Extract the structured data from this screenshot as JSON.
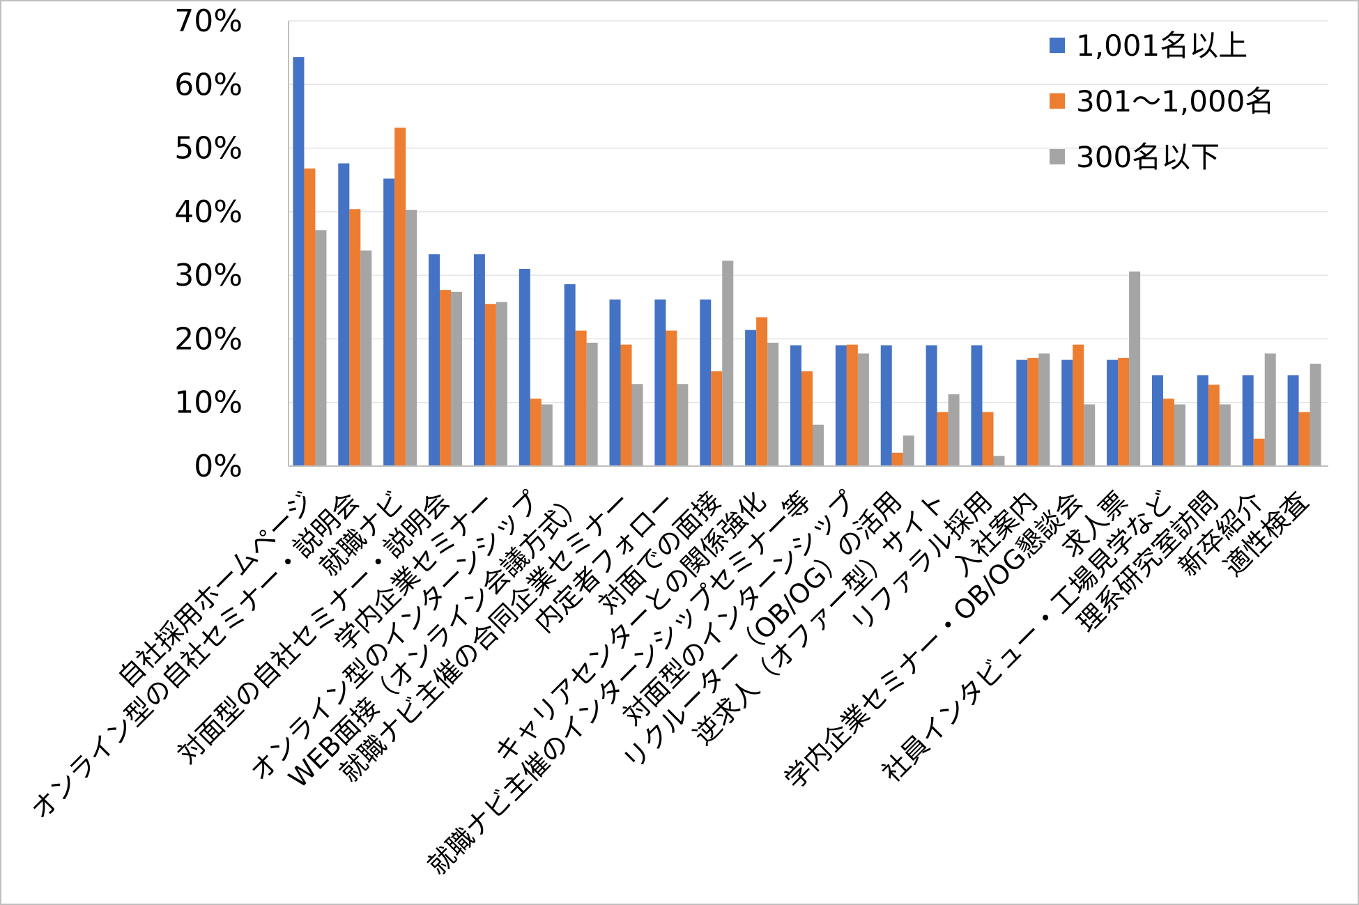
{
  "chart_data": {
    "type": "bar",
    "title": "",
    "xlabel": "",
    "ylabel": "",
    "ylim": [
      0,
      0.7
    ],
    "y_ticks": [
      "0%",
      "10%",
      "20%",
      "30%",
      "40%",
      "50%",
      "60%",
      "70%"
    ],
    "grid": true,
    "legend_position": "top-right",
    "categories": [
      "自社採用ホームページ",
      "オンライン型の自社セミナー・説明会",
      "就職ナビ",
      "対面型の自社セミナー・説明会",
      "学内企業セミナー",
      "オンライン型のインターンシップ",
      "WEB面接（オンライン会議方式）",
      "就職ナビ主催の合同企業セミナー",
      "内定者フォロー",
      "対面での面接",
      "キャリアセンターとの関係強化",
      "就職ナビ主催のインターンシップセミナー等",
      "対面型のインターンシップ",
      "リクルーター（OB/OG）の活用",
      "逆求人（オファー型）サイト",
      "リファラル採用",
      "入社案内",
      "学内企業セミナー・OB/OG懇談会",
      "求人票",
      "社員インタビュー・工場見学など",
      "理系研究室訪問",
      "新卒紹介",
      "適性検査"
    ],
    "series": [
      {
        "name": "1,001名以上",
        "color": "#4472C4",
        "values": [
          0.643,
          0.476,
          0.452,
          0.333,
          0.333,
          0.31,
          0.286,
          0.262,
          0.262,
          0.262,
          0.214,
          0.19,
          0.19,
          0.19,
          0.19,
          0.19,
          0.167,
          0.167,
          0.167,
          0.143,
          0.143,
          0.143,
          0.143
        ]
      },
      {
        "name": "301～1,000名",
        "color": "#ED7D31",
        "values": [
          0.468,
          0.404,
          0.532,
          0.277,
          0.255,
          0.106,
          0.213,
          0.191,
          0.213,
          0.149,
          0.234,
          0.149,
          0.191,
          0.021,
          0.085,
          0.085,
          0.17,
          0.191,
          0.17,
          0.106,
          0.128,
          0.043,
          0.085
        ]
      },
      {
        "name": "300名以下",
        "color": "#A5A5A5",
        "values": [
          0.371,
          0.339,
          0.403,
          0.274,
          0.258,
          0.097,
          0.194,
          0.129,
          0.129,
          0.323,
          0.194,
          0.065,
          0.177,
          0.048,
          0.113,
          0.016,
          0.177,
          0.097,
          0.306,
          0.097,
          0.097,
          0.177,
          0.161
        ]
      }
    ]
  }
}
